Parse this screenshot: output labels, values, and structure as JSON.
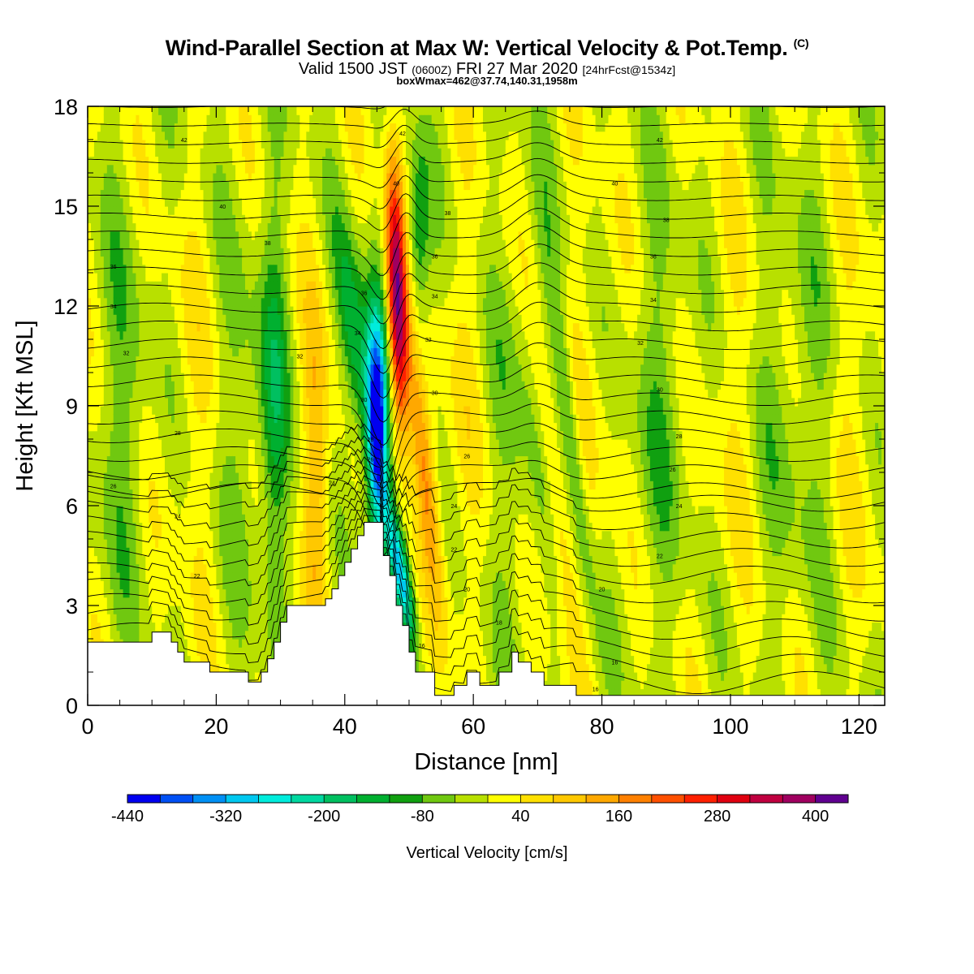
{
  "header": {
    "title": "Wind-Parallel Section at Max W: Vertical Velocity & Pot.Temp.",
    "copyright": "(C)",
    "valid_prefix": "Valid 1500 JST",
    "valid_utc": "(0600Z)",
    "valid_date": "FRI 27 Mar 2020",
    "forecast": "[24hrFcst@1534z]",
    "boxinfo": "boxWmax=462@37.74,140.31,1958m"
  },
  "chart_data": {
    "type": "heatmap",
    "xlabel": "Distance [nm]",
    "ylabel": "Height [Kft MSL]",
    "xlim": [
      0,
      124
    ],
    "ylim": [
      0,
      18
    ],
    "xticks": [
      "0",
      "20",
      "40",
      "60",
      "80",
      "100",
      "120"
    ],
    "yticks": [
      "0",
      "3",
      "6",
      "9",
      "12",
      "15",
      "18"
    ],
    "colorbar": {
      "label": "Vertical Velocity [cm/s]",
      "tick_labels": [
        "-440",
        "-320",
        "-200",
        "-80",
        "40",
        "160",
        "280",
        "400"
      ],
      "levels": [
        -440,
        -400,
        -360,
        -320,
        -280,
        -240,
        -200,
        -160,
        -120,
        -80,
        -40,
        0,
        40,
        80,
        120,
        160,
        200,
        240,
        280,
        320,
        360,
        400,
        440
      ],
      "colors": [
        "#0000f0",
        "#0050f5",
        "#0090f5",
        "#00c8f0",
        "#00ecdc",
        "#00d8a0",
        "#00c060",
        "#00b030",
        "#10a010",
        "#70c810",
        "#b8e000",
        "#ffff00",
        "#ffe000",
        "#ffc800",
        "#ffa800",
        "#ff8000",
        "#ff5000",
        "#ff2000",
        "#e00010",
        "#c00040",
        "#a00060",
        "#600090"
      ]
    },
    "terrain_kft": [
      [
        0,
        1.9
      ],
      [
        10,
        1.9
      ],
      [
        10,
        2.2
      ],
      [
        13,
        2.2
      ],
      [
        13,
        1.9
      ],
      [
        14,
        1.9
      ],
      [
        14,
        1.6
      ],
      [
        15,
        1.6
      ],
      [
        15,
        1.3
      ],
      [
        19,
        1.3
      ],
      [
        19,
        1.0
      ],
      [
        25,
        1.0
      ],
      [
        25,
        0.7
      ],
      [
        27,
        0.7
      ],
      [
        27,
        1.0
      ],
      [
        28,
        1.0
      ],
      [
        28,
        1.4
      ],
      [
        29,
        1.4
      ],
      [
        29,
        1.9
      ],
      [
        30,
        1.9
      ],
      [
        30,
        2.5
      ],
      [
        31,
        2.5
      ],
      [
        31,
        3.0
      ],
      [
        37,
        3.0
      ],
      [
        37,
        3.2
      ],
      [
        38,
        3.2
      ],
      [
        38,
        3.5
      ],
      [
        39,
        3.5
      ],
      [
        39,
        3.9
      ],
      [
        40,
        3.9
      ],
      [
        40,
        4.3
      ],
      [
        41,
        4.3
      ],
      [
        41,
        4.7
      ],
      [
        42,
        4.7
      ],
      [
        42,
        5.1
      ],
      [
        43,
        5.1
      ],
      [
        43,
        5.5
      ],
      [
        46,
        5.5
      ],
      [
        46,
        4.5
      ],
      [
        47,
        4.5
      ],
      [
        47,
        3.9
      ],
      [
        48,
        3.9
      ],
      [
        48,
        3.0
      ],
      [
        49,
        3.0
      ],
      [
        49,
        2.4
      ],
      [
        50,
        2.4
      ],
      [
        50,
        1.6
      ],
      [
        51,
        1.6
      ],
      [
        51,
        1.0
      ],
      [
        54,
        1.0
      ],
      [
        54,
        0.3
      ],
      [
        57,
        0.3
      ],
      [
        57,
        0.6
      ],
      [
        59,
        0.6
      ],
      [
        59,
        1.0
      ],
      [
        61,
        1.0
      ],
      [
        61,
        0.6
      ],
      [
        64,
        0.6
      ],
      [
        64,
        1.0
      ],
      [
        66,
        1.0
      ],
      [
        66,
        1.6
      ],
      [
        67,
        1.6
      ],
      [
        67,
        1.3
      ],
      [
        69,
        1.3
      ],
      [
        69,
        1.0
      ],
      [
        71,
        1.0
      ],
      [
        71,
        0.6
      ],
      [
        76,
        0.6
      ],
      [
        76,
        0.3
      ],
      [
        124,
        0.3
      ]
    ],
    "theta_contour_labels": [
      "42",
      "40",
      "38",
      "36",
      "34",
      "32",
      "30",
      "28",
      "26",
      "24",
      "22",
      "20",
      "18",
      "16"
    ]
  }
}
